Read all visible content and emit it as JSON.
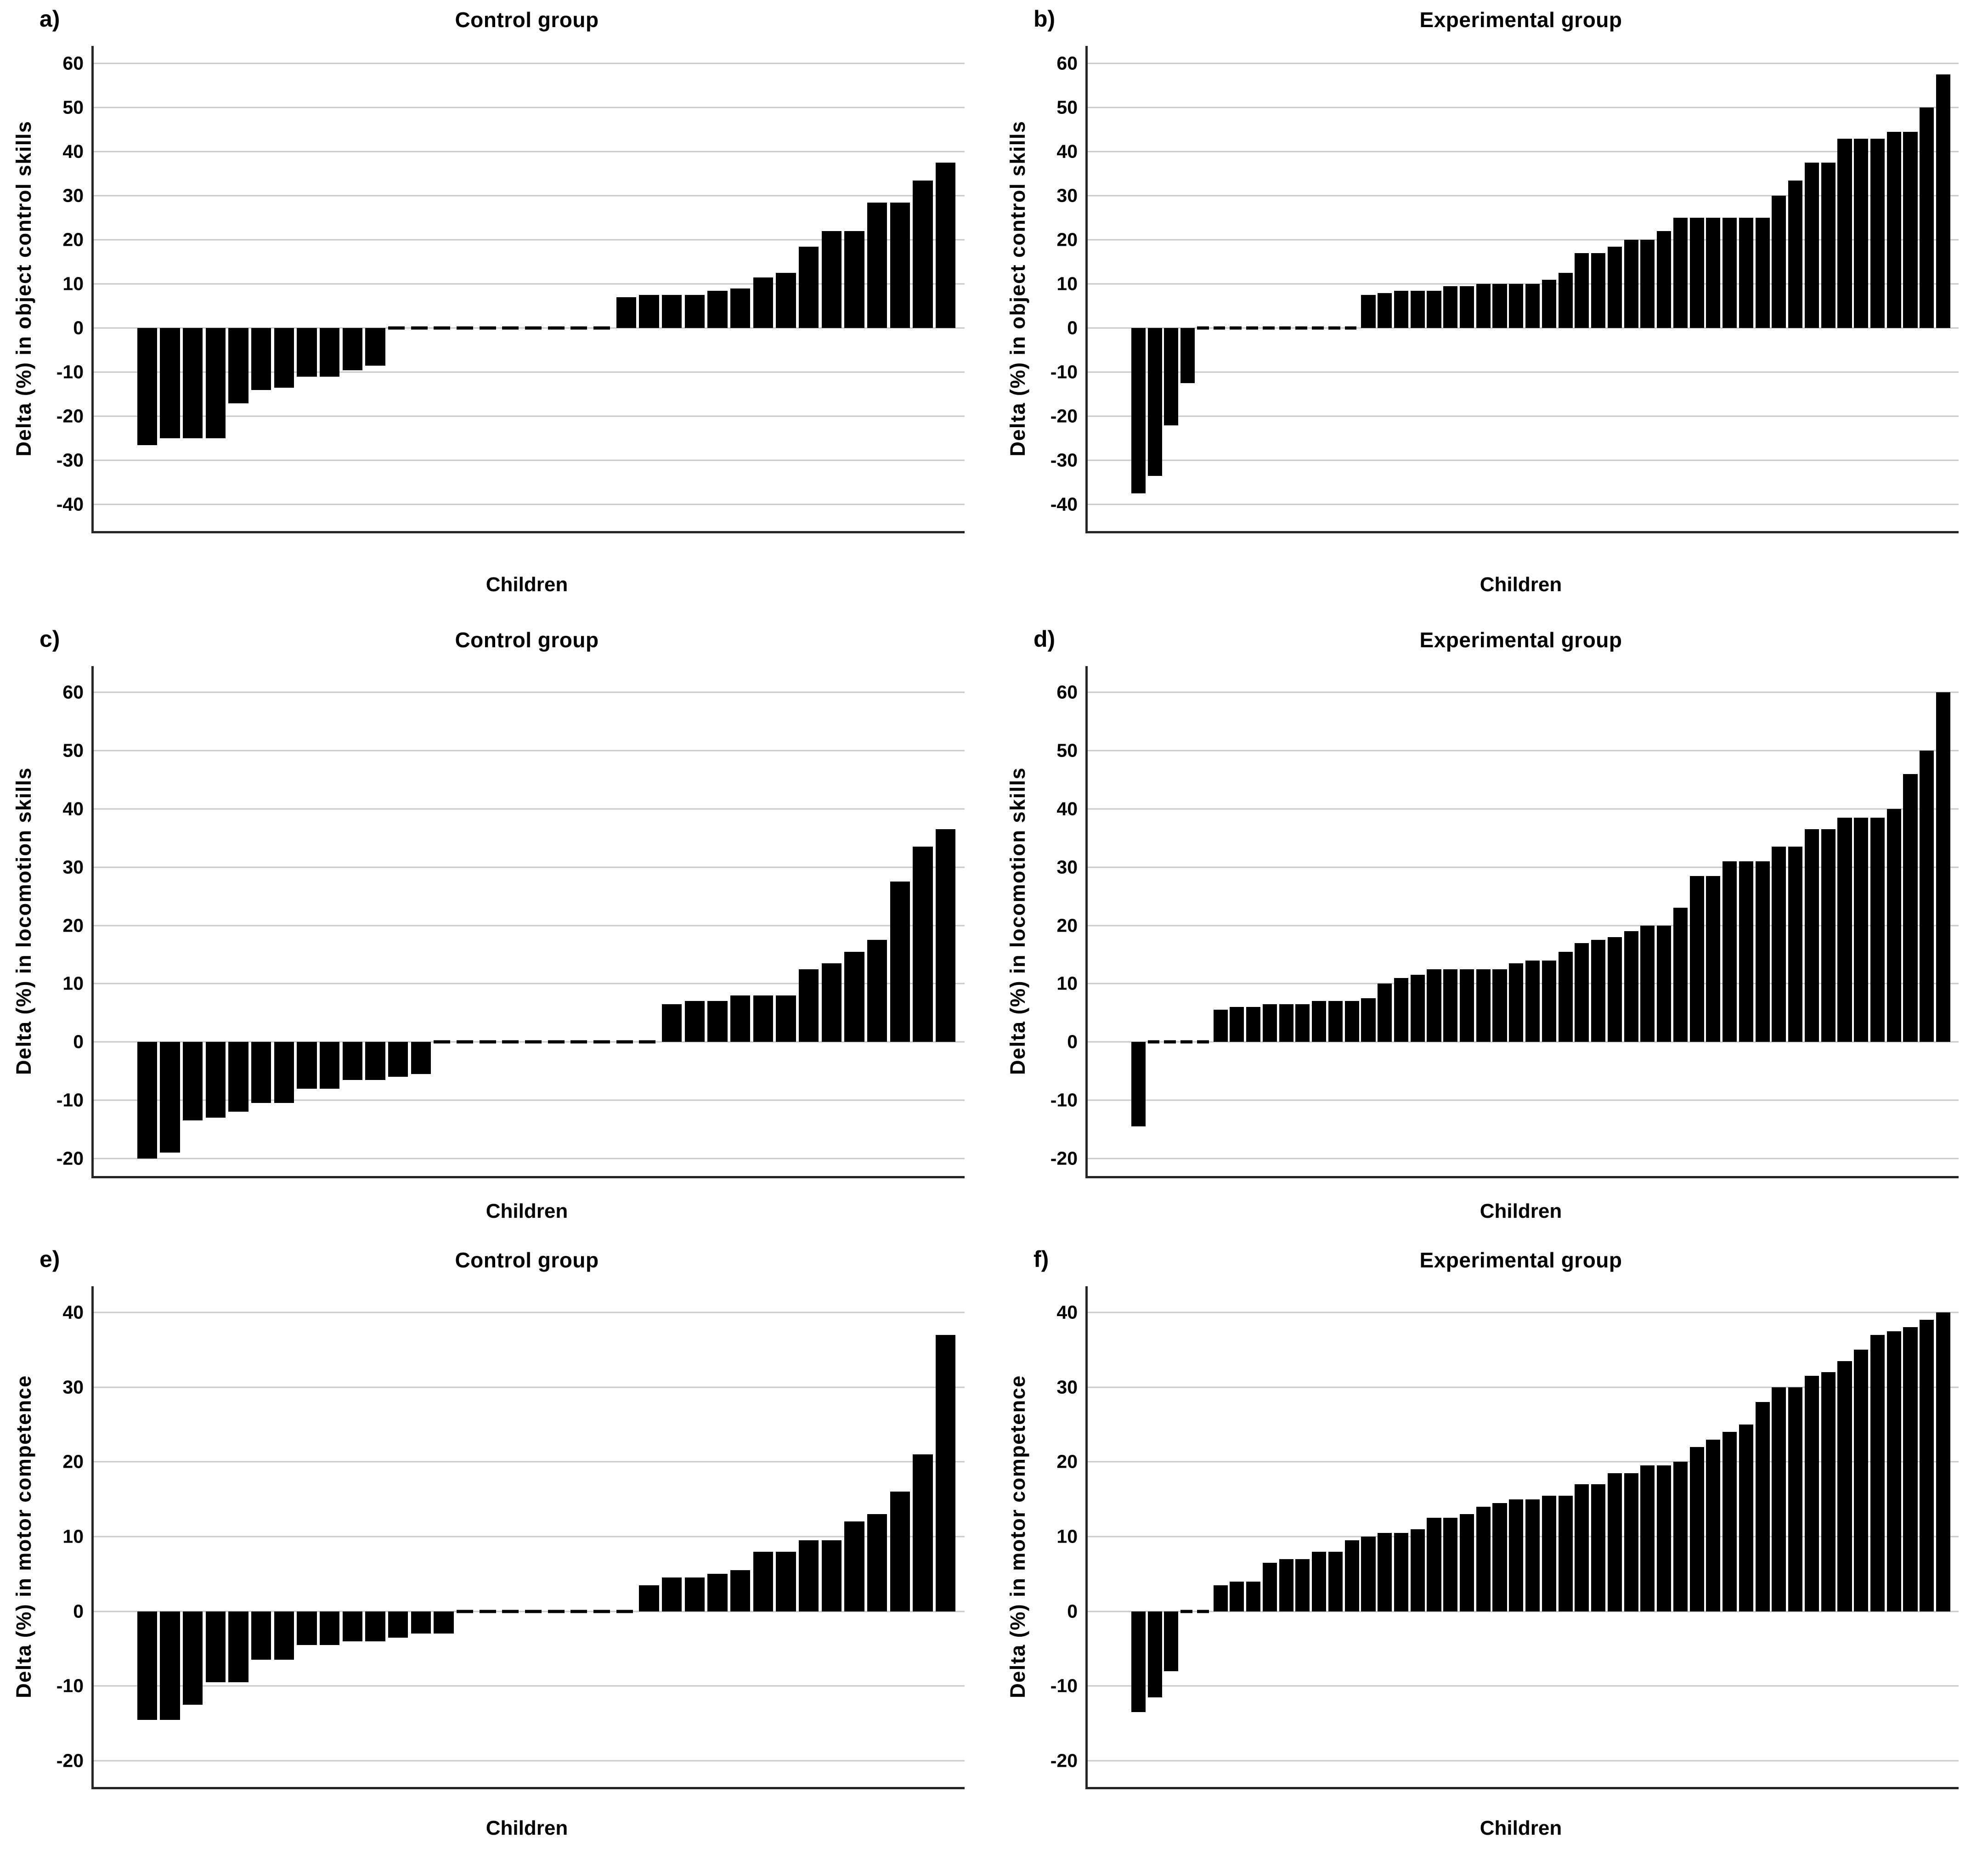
{
  "figure": {
    "bar_color": "#000000",
    "gridline_color": "#c8c8c8",
    "axis_color": "#262626",
    "background_color": "#ffffff"
  },
  "chart_data": [
    {
      "type": "bar",
      "panel_label": "a)",
      "title": "Control group",
      "ylabel": "Delta (%) in object control skills",
      "xlabel": "Children",
      "ylim": [
        -46,
        64
      ],
      "yticks": [
        60,
        50,
        40,
        30,
        20,
        10,
        0,
        -10,
        -20,
        -30,
        -40
      ],
      "grid": true,
      "legend": "none",
      "values": [
        -26.5,
        -25,
        -25,
        -25,
        -17,
        -14,
        -13.5,
        -11,
        -11,
        -9.5,
        -8.5,
        0,
        0,
        0,
        0,
        0,
        0,
        0,
        0,
        0,
        0,
        7,
        7.5,
        7.5,
        7.5,
        8.5,
        9,
        11.5,
        12.5,
        18.5,
        22,
        22,
        28.5,
        28.5,
        33.5,
        37.5
      ]
    },
    {
      "type": "bar",
      "panel_label": "b)",
      "title": "Experimental group",
      "ylabel": "Delta (%) in object control skills",
      "xlabel": "Children",
      "ylim": [
        -46,
        64
      ],
      "yticks": [
        60,
        50,
        40,
        30,
        20,
        10,
        0,
        -10,
        -20,
        -30,
        -40
      ],
      "grid": true,
      "legend": "none",
      "values": [
        -37.5,
        -33.5,
        -22,
        -12.5,
        0,
        0,
        0,
        0,
        0,
        0,
        0,
        0,
        0,
        0,
        7.5,
        8,
        8.5,
        8.5,
        8.5,
        9.5,
        9.5,
        10,
        10,
        10,
        10,
        11,
        12.5,
        17,
        17,
        18.5,
        20,
        20,
        22,
        25,
        25,
        25,
        25,
        25,
        25,
        30,
        33.5,
        37.5,
        37.5,
        43,
        43,
        43,
        44.5,
        44.5,
        50,
        57.5
      ]
    },
    {
      "type": "bar",
      "panel_label": "c)",
      "title": "Control group",
      "ylabel": "Delta (%) in locomotion skills",
      "xlabel": "Children",
      "ylim": [
        -23,
        64.5
      ],
      "yticks": [
        60,
        50,
        40,
        30,
        20,
        10,
        0,
        -10,
        -20
      ],
      "grid": true,
      "legend": "none",
      "values": [
        -20,
        -19,
        -13.5,
        -13,
        -12,
        -10.5,
        -10.5,
        -8,
        -8,
        -6.5,
        -6.5,
        -6,
        -5.5,
        0,
        0,
        0,
        0,
        0,
        0,
        0,
        0,
        0,
        0,
        6.5,
        7,
        7,
        8,
        8,
        8,
        12.5,
        13.5,
        15.5,
        17.5,
        27.5,
        33.5,
        36.5
      ]
    },
    {
      "type": "bar",
      "panel_label": "d)",
      "title": "Experimental group",
      "ylabel": "Delta (%) in locomotion skills",
      "xlabel": "Children",
      "ylim": [
        -23,
        64.5
      ],
      "yticks": [
        60,
        50,
        40,
        30,
        20,
        10,
        0,
        -10,
        -20
      ],
      "grid": true,
      "legend": "none",
      "values": [
        -14.5,
        0,
        0,
        0,
        0,
        5.5,
        6,
        6,
        6.5,
        6.5,
        6.5,
        7,
        7,
        7,
        7.5,
        10,
        11,
        11.5,
        12.5,
        12.5,
        12.5,
        12.5,
        12.5,
        13.5,
        14,
        14,
        15.5,
        17,
        17.5,
        18,
        19,
        20,
        20,
        23,
        28.5,
        28.5,
        31,
        31,
        31,
        33.5,
        33.5,
        36.5,
        36.5,
        38.5,
        38.5,
        38.5,
        40,
        46,
        50,
        60
      ]
    },
    {
      "type": "bar",
      "panel_label": "e)",
      "title": "Control group",
      "ylabel": "Delta (%) in motor competence",
      "xlabel": "Children",
      "ylim": [
        -23.5,
        43.5
      ],
      "yticks": [
        40,
        30,
        20,
        10,
        0,
        -10,
        -20
      ],
      "grid": true,
      "legend": "none",
      "values": [
        -14.5,
        -14.5,
        -12.5,
        -9.5,
        -9.5,
        -6.5,
        -6.5,
        -4.5,
        -4.5,
        -4,
        -4,
        -3.5,
        -3,
        -3,
        0,
        0,
        0,
        0,
        0,
        0,
        0,
        0,
        3.5,
        4.5,
        4.5,
        5,
        5.5,
        8,
        8,
        9.5,
        9.5,
        12,
        13,
        16,
        21,
        37
      ]
    },
    {
      "type": "bar",
      "panel_label": "f)",
      "title": "Experimental group",
      "ylabel": "Delta (%) in motor competence",
      "xlabel": "Children",
      "ylim": [
        -23.5,
        43.5
      ],
      "yticks": [
        40,
        30,
        20,
        10,
        0,
        -10,
        -20
      ],
      "grid": true,
      "legend": "none",
      "values": [
        -13.5,
        -11.5,
        -8,
        0,
        0,
        3.5,
        4,
        4,
        6.5,
        7,
        7,
        8,
        8,
        9.5,
        10,
        10.5,
        10.5,
        11,
        12.5,
        12.5,
        13,
        14,
        14.5,
        15,
        15,
        15.5,
        15.5,
        17,
        17,
        18.5,
        18.5,
        19.5,
        19.5,
        20,
        22,
        23,
        24,
        25,
        28,
        30,
        30,
        31.5,
        32,
        33.5,
        35,
        37,
        37.5,
        38,
        39,
        40
      ]
    }
  ]
}
